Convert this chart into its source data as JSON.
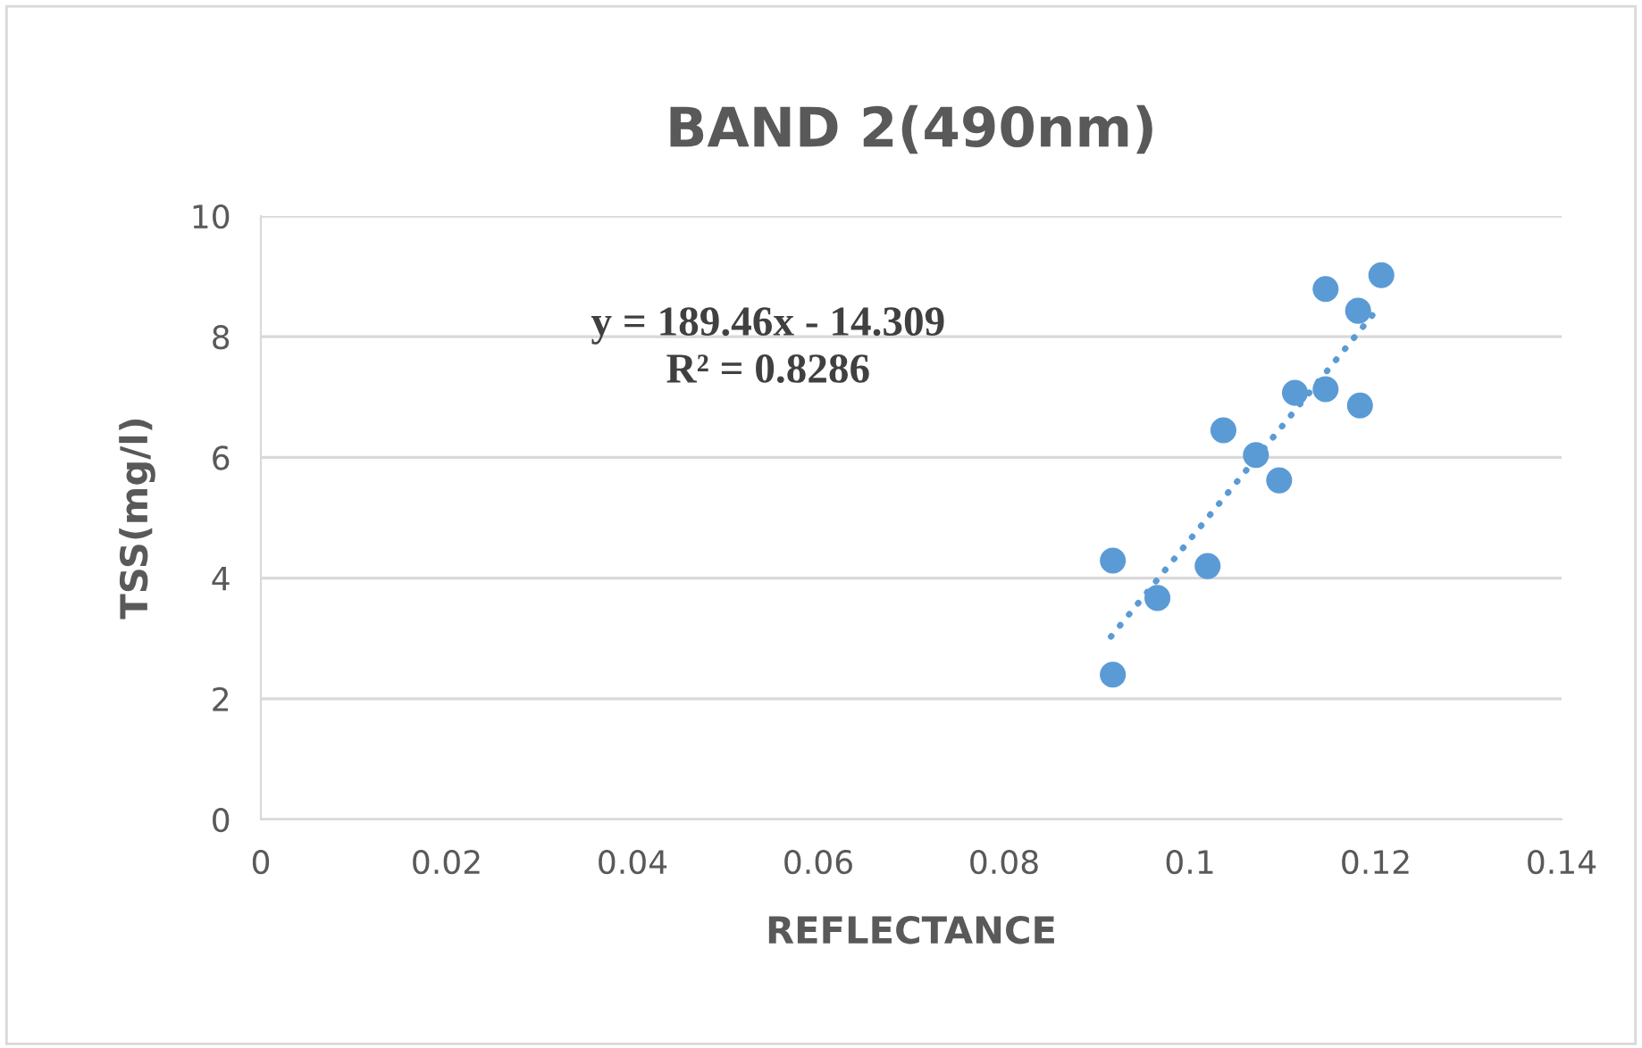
{
  "chart_data": {
    "type": "scatter",
    "title": "BAND 2(490nm)",
    "xlabel": "REFLECTANCE",
    "ylabel": "TSS(mg/l)",
    "series": [
      {
        "color": "#5b9bd5",
        "marker": "circle",
        "x": [
          0.0917,
          0.0917,
          0.0965,
          0.1019,
          0.1036,
          0.1071,
          0.1096,
          0.1113,
          0.1146,
          0.1146,
          0.1181,
          0.1183,
          0.1206
        ],
        "values": [
          2.4,
          4.29,
          3.67,
          4.2,
          6.45,
          6.04,
          5.62,
          7.07,
          8.79,
          7.13,
          8.43,
          6.86,
          9.02
        ]
      },
      {
        "type": "line",
        "color": "#5b9bd5",
        "line_style": "dotted",
        "x": [
          0.0915,
          0.1205
        ],
        "values": [
          3.03,
          8.52
        ]
      }
    ],
    "annotations": [
      "y = 189.46x - 14.309\nR² = 0.8286"
    ],
    "xlim": [
      0,
      0.14
    ],
    "xticks": [
      0,
      0.02,
      0.04,
      0.06,
      0.08,
      0.1,
      0.12,
      0.14
    ],
    "ylim": [
      0,
      10
    ],
    "yticks": [
      0,
      2,
      4,
      6,
      8,
      10
    ],
    "grid": "y",
    "legend": false
  }
}
